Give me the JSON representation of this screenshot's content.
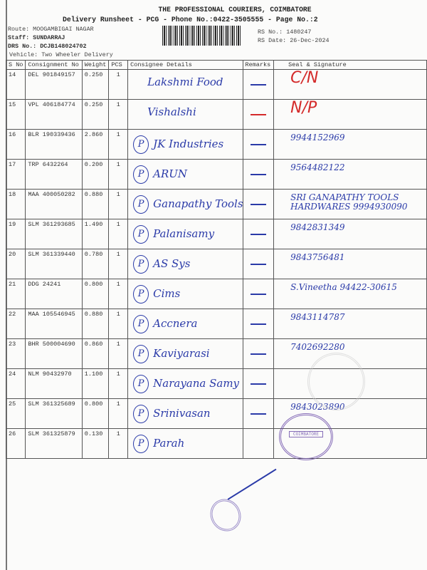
{
  "header": {
    "company": "THE PROFESSIONAL COURIERS, COIMBATORE",
    "subtitle": "Delivery Runsheet - PCG - Phone No.:0422-3505555 - Page No.:2",
    "route": "Route: MOOGAMBIGAI NAGAR",
    "staff": "Staff: SUNDARRAJ",
    "drs_no": "DRS No.: DCJB148024702",
    "vehicle": "Vehicle: Two Wheeler Delivery",
    "rs_no": "RS No.: 1480247",
    "rs_date": "RS Date: 26-Dec-2024"
  },
  "table": {
    "columns": [
      "S No",
      "Consignment No",
      "Weight",
      "PCS",
      "Consignee Details",
      "Remarks",
      "Seal & Signature"
    ],
    "rows": [
      {
        "sno": "14",
        "cno": "DEL 901849157",
        "weight": "0.250",
        "pcs": "1",
        "consignee": "Lakshmi Food",
        "p": "",
        "remark": "—",
        "seal": "C/N",
        "seal_red": true
      },
      {
        "sno": "15",
        "cno": "VPL 406184774",
        "weight": "0.250",
        "pcs": "1",
        "consignee": "Vishalshi",
        "p": "",
        "remark": "—",
        "seal": "N/P",
        "seal_red": true
      },
      {
        "sno": "16",
        "cno": "BLR 190339436",
        "weight": "2.860",
        "pcs": "1",
        "consignee": "JK Industries",
        "p": "P",
        "remark": "—",
        "seal": "9944152969"
      },
      {
        "sno": "17",
        "cno": "TRP 6432264",
        "weight": "0.200",
        "pcs": "1",
        "consignee": "ARUN",
        "p": "P",
        "remark": "—",
        "seal": "9564482122"
      },
      {
        "sno": "18",
        "cno": "MAA 400050282",
        "weight": "0.880",
        "pcs": "1",
        "consignee": "Ganapathy Tools",
        "p": "P",
        "remark": "—",
        "seal": "SRI GANAPATHY TOOLS HARDWARES 9994930090"
      },
      {
        "sno": "19",
        "cno": "SLM 361293685",
        "weight": "1.490",
        "pcs": "1",
        "consignee": "Palanisamy",
        "p": "P",
        "remark": "—",
        "seal": "9842831349"
      },
      {
        "sno": "20",
        "cno": "SLM 361339440",
        "weight": "0.780",
        "pcs": "1",
        "consignee": "AS Sys",
        "p": "P",
        "remark": "—",
        "seal": "9843756481"
      },
      {
        "sno": "21",
        "cno": "DDG 24241",
        "weight": "0.800",
        "pcs": "1",
        "consignee": "Cims",
        "p": "P",
        "remark": "—",
        "seal": "S.Vineetha 94422-30615"
      },
      {
        "sno": "22",
        "cno": "MAA 105546945",
        "weight": "0.880",
        "pcs": "1",
        "consignee": "Accnera",
        "p": "P",
        "remark": "—",
        "seal": "9843114787"
      },
      {
        "sno": "23",
        "cno": "BHR 500004690",
        "weight": "0.860",
        "pcs": "1",
        "consignee": "Kaviyarasi",
        "p": "P",
        "remark": "—",
        "seal": "7402692280"
      },
      {
        "sno": "24",
        "cno": "NLM 90432970",
        "weight": "1.100",
        "pcs": "1",
        "consignee": "Narayana Samy",
        "p": "P",
        "remark": "—",
        "seal": ""
      },
      {
        "sno": "25",
        "cno": "SLM 361325689",
        "weight": "0.800",
        "pcs": "1",
        "consignee": "Srinivasan",
        "p": "P",
        "remark": "—",
        "seal": "9843023890"
      },
      {
        "sno": "26",
        "cno": "SLM 361325879",
        "weight": "0.130",
        "pcs": "1",
        "consignee": "Parah",
        "p": "P",
        "remark": "",
        "seal": ""
      }
    ]
  },
  "stamp": {
    "text": "COIMBATORE",
    "color": "#6a4aa8"
  }
}
